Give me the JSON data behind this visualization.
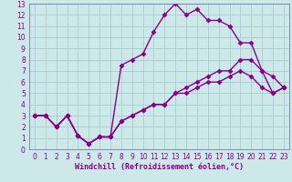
{
  "xlabel": "Windchill (Refroidissement éolien,°C)",
  "bg_color": "#cce8e8",
  "grid_color": "#aacccc",
  "line_color": "#880088",
  "xlim": [
    -0.5,
    23.5
  ],
  "ylim": [
    0,
    13
  ],
  "xticks": [
    0,
    1,
    2,
    3,
    4,
    5,
    6,
    7,
    8,
    9,
    10,
    11,
    12,
    13,
    14,
    15,
    16,
    17,
    18,
    19,
    20,
    21,
    22,
    23
  ],
  "yticks": [
    0,
    1,
    2,
    3,
    4,
    5,
    6,
    7,
    8,
    9,
    10,
    11,
    12,
    13
  ],
  "line1_x": [
    0,
    1,
    2,
    3,
    4,
    5,
    6,
    7,
    8,
    9,
    10,
    11,
    12,
    13,
    14,
    15,
    16,
    17,
    18,
    19,
    20,
    21,
    22,
    23
  ],
  "line1_y": [
    3,
    3,
    2,
    3,
    1.2,
    0.5,
    1.1,
    1.1,
    7.5,
    8,
    8.5,
    10.5,
    12,
    13,
    12,
    12.5,
    11.5,
    11.5,
    11,
    9.5,
    9.5,
    7,
    5,
    5.5
  ],
  "line2_x": [
    0,
    1,
    2,
    3,
    4,
    5,
    6,
    7,
    8,
    9,
    10,
    11,
    12,
    13,
    14,
    15,
    16,
    17,
    18,
    19,
    20,
    21,
    22,
    23
  ],
  "line2_y": [
    3,
    3,
    2,
    3,
    1.2,
    0.5,
    1.1,
    1.1,
    2.5,
    3,
    3.5,
    4,
    4,
    5,
    5.5,
    6,
    6.5,
    7,
    7,
    8,
    8,
    7,
    6.5,
    5.5
  ],
  "line3_x": [
    0,
    1,
    2,
    3,
    4,
    5,
    6,
    7,
    8,
    9,
    10,
    11,
    12,
    13,
    14,
    15,
    16,
    17,
    18,
    19,
    20,
    21,
    22,
    23
  ],
  "line3_y": [
    3,
    3,
    2,
    3,
    1.2,
    0.5,
    1.1,
    1.1,
    2.5,
    3,
    3.5,
    4,
    4,
    5,
    5,
    5.5,
    6,
    6,
    6.5,
    7,
    6.5,
    5.5,
    5,
    5.5
  ],
  "marker": "D",
  "markersize": 2.5,
  "linewidth": 1.0,
  "xlabel_fontsize": 6,
  "tick_fontsize": 5.5,
  "xlabel_color": "#880088",
  "tick_color": "#880088"
}
